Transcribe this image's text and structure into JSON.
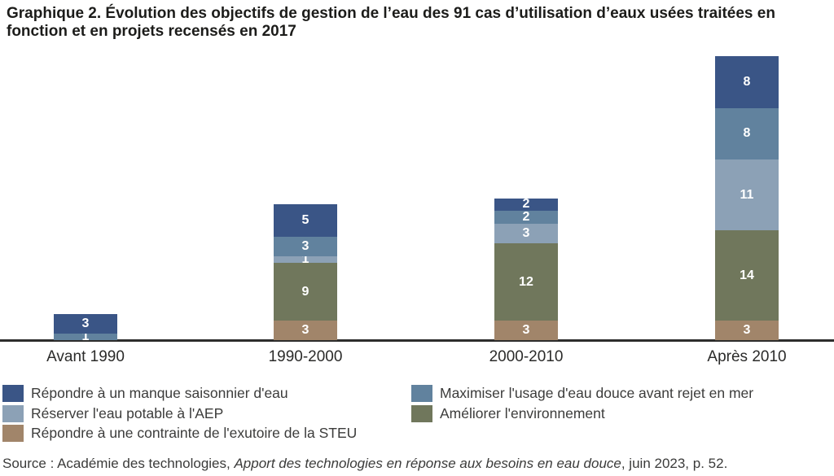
{
  "title": {
    "label": "Graphique 2.",
    "text": " Évolution des objectifs de gestion de l’eau des 91 cas d’utilisation d’eaux usées traitées en fonction et en projets recensés en 2017"
  },
  "chart_data": {
    "type": "bar",
    "stacked": true,
    "categories": [
      "Avant 1990",
      "1990-2000",
      "2000-2010",
      "Après 2010"
    ],
    "series": [
      {
        "name": "Répondre à un manque saisonnier d'eau",
        "color": "#3A5586",
        "values": [
          3,
          5,
          2,
          8
        ]
      },
      {
        "name": "Maximiser l'usage d'eau douce avant rejet en mer",
        "color": "#61829E",
        "values": [
          1,
          3,
          2,
          8
        ]
      },
      {
        "name": "Réserver l'eau potable à l'AEP",
        "color": "#8CA1B6",
        "values": [
          0,
          1,
          3,
          11
        ]
      },
      {
        "name": "Améliorer l'environnement",
        "color": "#70775C",
        "values": [
          0,
          9,
          12,
          14
        ]
      },
      {
        "name": "Répondre à une contrainte de l'exutoire de la STEU",
        "color": "#A1856A",
        "values": [
          0,
          3,
          3,
          3
        ]
      }
    ],
    "stack_order_bottom_to_top": [
      4,
      3,
      2,
      1,
      0
    ],
    "totals_per_category": [
      4,
      21,
      22,
      44
    ],
    "grand_total": 91,
    "value_labels_shown": true,
    "gridlines": false,
    "y_axis_shown": false,
    "x_baseline_shown": true,
    "legend_position": "bottom",
    "legend_columns": [
      [
        0,
        2,
        4
      ],
      [
        1,
        3
      ]
    ],
    "value_label_color": "#FFFFFF",
    "axis_color": "#2D2D2C"
  },
  "source": {
    "prefix": "Source : Académie des technologies, ",
    "italic": "Apport des technologies en réponse aux besoins en eau douce",
    "suffix": ", juin 2023, p. 52."
  }
}
